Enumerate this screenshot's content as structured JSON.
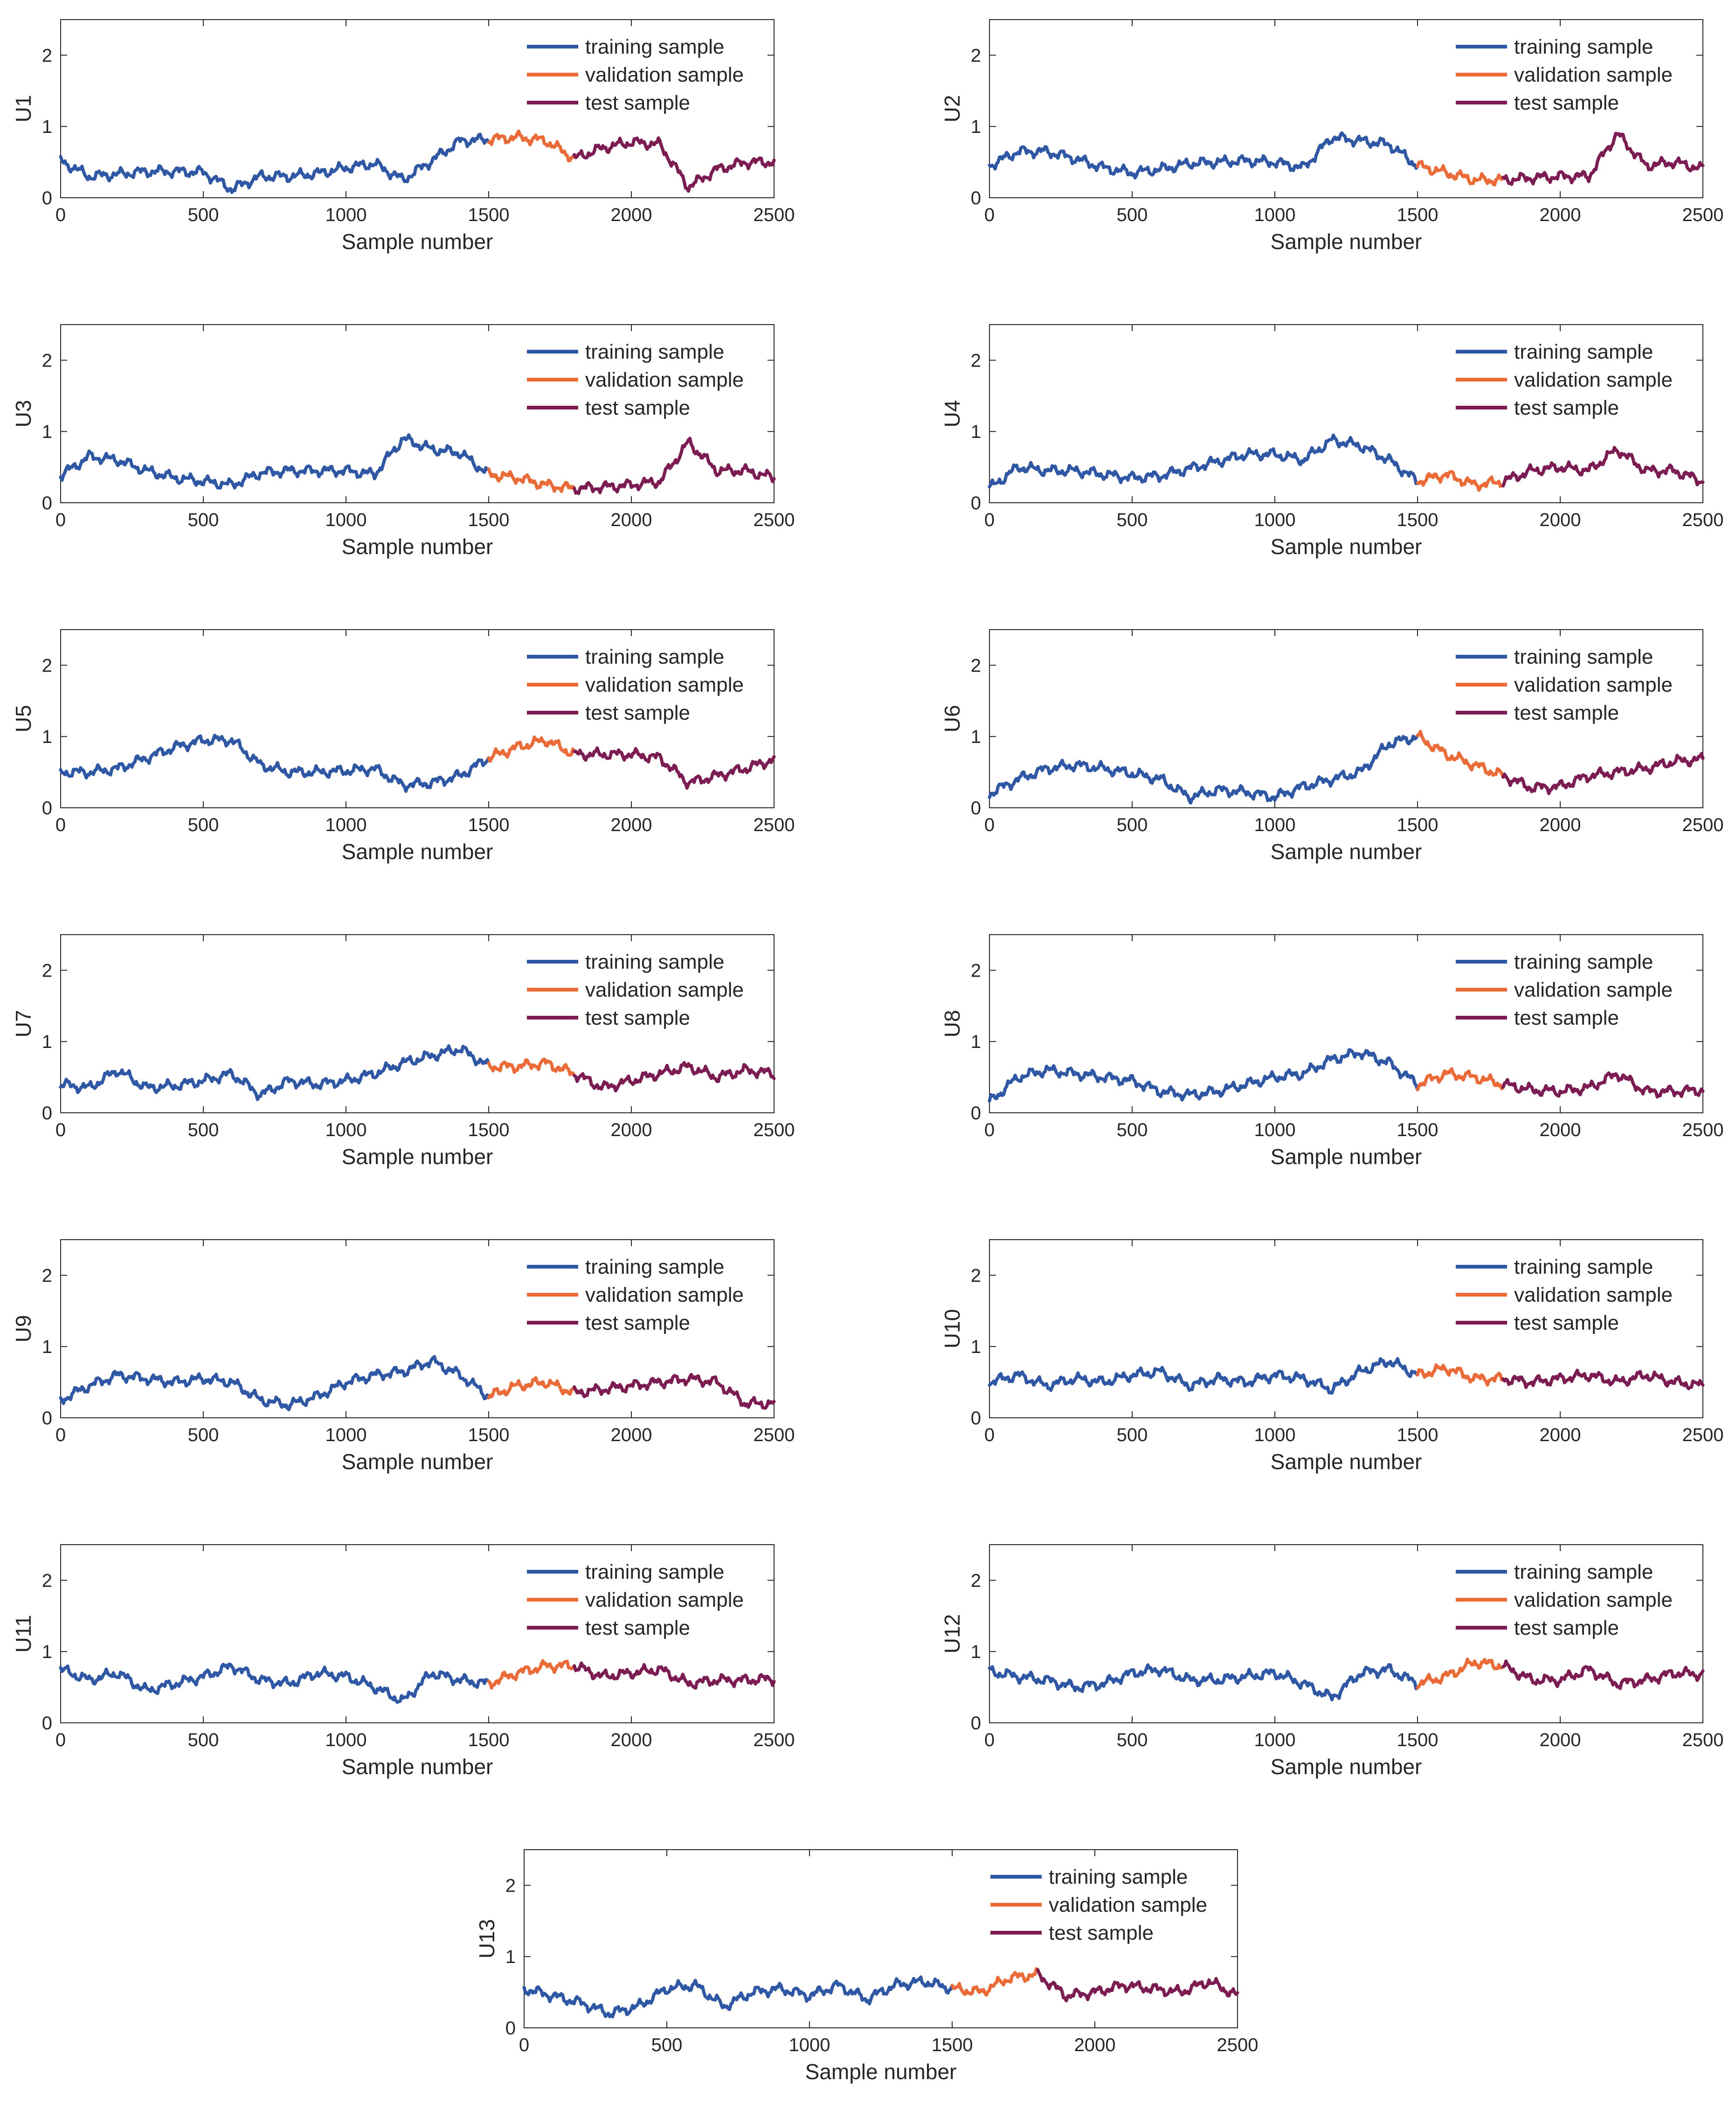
{
  "colors": {
    "train": "#2E57A6",
    "val": "#EC6A35",
    "test": "#7D1C53",
    "axis": "#262626"
  },
  "chart_data": [
    {
      "type": "line",
      "ylabel": "U1",
      "xlabel": "Sample number",
      "xlim": [
        0,
        2500
      ],
      "ylim": [
        0,
        2.5
      ],
      "xticks": [
        0,
        500,
        1000,
        1500,
        2000,
        2500
      ],
      "yticks": [
        0,
        1,
        2
      ],
      "legend": [
        "training sample",
        "validation sample",
        "test sample"
      ],
      "legend_position": "top-right",
      "splits": {
        "train": [
          0,
          1500
        ],
        "validation": [
          1500,
          1800
        ],
        "test": [
          1800,
          2500
        ]
      },
      "x": [
        0,
        100,
        200,
        300,
        400,
        500,
        600,
        700,
        800,
        900,
        1000,
        1100,
        1200,
        1300,
        1400,
        1500,
        1600,
        1700,
        1800,
        1900,
        2000,
        2100,
        2200,
        2300,
        2400,
        2500
      ],
      "values": [
        0.52,
        0.3,
        0.33,
        0.37,
        0.37,
        0.36,
        0.12,
        0.3,
        0.3,
        0.34,
        0.42,
        0.48,
        0.25,
        0.52,
        0.8,
        0.82,
        0.85,
        0.8,
        0.55,
        0.7,
        0.78,
        0.75,
        0.15,
        0.4,
        0.5,
        0.5
      ]
    },
    {
      "type": "line",
      "ylabel": "U2",
      "xlabel": "Sample number",
      "xlim": [
        0,
        2500
      ],
      "ylim": [
        0,
        2.5
      ],
      "xticks": [
        0,
        500,
        1000,
        1500,
        2000,
        2500
      ],
      "yticks": [
        0,
        1,
        2
      ],
      "legend": [
        "training sample",
        "validation sample",
        "test sample"
      ],
      "legend_position": "top-right",
      "splits": {
        "train": [
          0,
          1500
        ],
        "validation": [
          1500,
          1800
        ],
        "test": [
          1800,
          2500
        ]
      },
      "x": [
        0,
        100,
        200,
        300,
        400,
        500,
        600,
        700,
        800,
        900,
        1000,
        1100,
        1200,
        1300,
        1400,
        1500,
        1600,
        1700,
        1800,
        1900,
        2000,
        2100,
        2200,
        2300,
        2400,
        2500
      ],
      "values": [
        0.45,
        0.65,
        0.65,
        0.55,
        0.42,
        0.35,
        0.4,
        0.48,
        0.5,
        0.52,
        0.5,
        0.42,
        0.85,
        0.8,
        0.75,
        0.45,
        0.35,
        0.25,
        0.25,
        0.28,
        0.3,
        0.3,
        0.9,
        0.45,
        0.5,
        0.4
      ]
    },
    {
      "type": "line",
      "ylabel": "U3",
      "xlabel": "Sample number",
      "xlim": [
        0,
        2500
      ],
      "ylim": [
        0,
        2.5
      ],
      "xticks": [
        0,
        500,
        1000,
        1500,
        2000,
        2500
      ],
      "yticks": [
        0,
        1,
        2
      ],
      "legend": [
        "training sample",
        "validation sample",
        "test sample"
      ],
      "legend_position": "top-right",
      "splits": {
        "train": [
          0,
          1500
        ],
        "validation": [
          1500,
          1800
        ],
        "test": [
          1800,
          2500
        ]
      },
      "x": [
        0,
        100,
        200,
        300,
        400,
        500,
        600,
        700,
        800,
        900,
        1000,
        1100,
        1200,
        1300,
        1400,
        1500,
        1600,
        1700,
        1800,
        1900,
        2000,
        2100,
        2200,
        2300,
        2400,
        2500
      ],
      "values": [
        0.38,
        0.65,
        0.6,
        0.45,
        0.35,
        0.3,
        0.25,
        0.42,
        0.45,
        0.45,
        0.45,
        0.4,
        0.9,
        0.75,
        0.7,
        0.4,
        0.35,
        0.25,
        0.2,
        0.22,
        0.25,
        0.3,
        0.85,
        0.45,
        0.45,
        0.35
      ]
    },
    {
      "type": "line",
      "ylabel": "U4",
      "xlabel": "Sample number",
      "xlim": [
        0,
        2500
      ],
      "ylim": [
        0,
        2.5
      ],
      "xticks": [
        0,
        500,
        1000,
        1500,
        2000,
        2500
      ],
      "yticks": [
        0,
        1,
        2
      ],
      "legend": [
        "training sample",
        "validation sample",
        "test sample"
      ],
      "legend_position": "top-right",
      "splits": {
        "train": [
          0,
          1500
        ],
        "validation": [
          1500,
          1800
        ],
        "test": [
          1800,
          2500
        ]
      },
      "x": [
        0,
        100,
        200,
        300,
        400,
        500,
        600,
        700,
        800,
        900,
        1000,
        1100,
        1200,
        1300,
        1400,
        1500,
        1600,
        1700,
        1800,
        1900,
        2000,
        2100,
        2200,
        2300,
        2400,
        2500
      ],
      "values": [
        0.2,
        0.5,
        0.45,
        0.45,
        0.4,
        0.35,
        0.38,
        0.48,
        0.58,
        0.68,
        0.68,
        0.6,
        0.88,
        0.8,
        0.6,
        0.3,
        0.4,
        0.25,
        0.3,
        0.45,
        0.5,
        0.45,
        0.75,
        0.45,
        0.45,
        0.3
      ]
    },
    {
      "type": "line",
      "ylabel": "U5",
      "xlabel": "Sample number",
      "xlim": [
        0,
        2500
      ],
      "ylim": [
        0,
        2.5
      ],
      "xticks": [
        0,
        500,
        1000,
        1500,
        2000,
        2500
      ],
      "yticks": [
        0,
        1,
        2
      ],
      "legend": [
        "training sample",
        "validation sample",
        "test sample"
      ],
      "legend_position": "top-right",
      "splits": {
        "train": [
          0,
          1500
        ],
        "validation": [
          1500,
          1800
        ],
        "test": [
          1800,
          2500
        ]
      },
      "x": [
        0,
        100,
        200,
        300,
        400,
        500,
        600,
        700,
        800,
        900,
        1000,
        1100,
        1200,
        1300,
        1400,
        1500,
        1600,
        1700,
        1800,
        1900,
        2000,
        2100,
        2200,
        2300,
        2400,
        2500
      ],
      "values": [
        0.5,
        0.5,
        0.55,
        0.7,
        0.85,
        0.95,
        0.95,
        0.6,
        0.5,
        0.5,
        0.52,
        0.55,
        0.32,
        0.35,
        0.45,
        0.7,
        0.85,
        0.95,
        0.75,
        0.75,
        0.75,
        0.7,
        0.35,
        0.45,
        0.55,
        0.68
      ]
    },
    {
      "type": "line",
      "ylabel": "U6",
      "xlabel": "Sample number",
      "xlim": [
        0,
        2500
      ],
      "ylim": [
        0,
        2.5
      ],
      "xticks": [
        0,
        500,
        1000,
        1500,
        2000,
        2500
      ],
      "yticks": [
        0,
        1,
        2
      ],
      "legend": [
        "training sample",
        "validation sample",
        "test sample"
      ],
      "legend_position": "top-right",
      "splits": {
        "train": [
          0,
          1500
        ],
        "validation": [
          1500,
          1800
        ],
        "test": [
          1800,
          2500
        ]
      },
      "x": [
        0,
        100,
        200,
        300,
        400,
        500,
        600,
        700,
        800,
        900,
        1000,
        1100,
        1200,
        1300,
        1400,
        1500,
        1600,
        1700,
        1800,
        1900,
        2000,
        2100,
        2200,
        2300,
        2400,
        2500
      ],
      "values": [
        0.2,
        0.4,
        0.55,
        0.6,
        0.55,
        0.48,
        0.4,
        0.15,
        0.25,
        0.22,
        0.15,
        0.3,
        0.4,
        0.5,
        0.9,
        1.0,
        0.75,
        0.6,
        0.45,
        0.28,
        0.3,
        0.45,
        0.5,
        0.55,
        0.65,
        0.68
      ]
    },
    {
      "type": "line",
      "ylabel": "U7",
      "xlabel": "Sample number",
      "xlim": [
        0,
        2500
      ],
      "ylim": [
        0,
        2.5
      ],
      "xticks": [
        0,
        500,
        1000,
        1500,
        2000,
        2500
      ],
      "yticks": [
        0,
        1,
        2
      ],
      "legend": [
        "training sample",
        "validation sample",
        "test sample"
      ],
      "legend_position": "top-right",
      "splits": {
        "train": [
          0,
          1500
        ],
        "validation": [
          1500,
          1800
        ],
        "test": [
          1800,
          2500
        ]
      },
      "x": [
        0,
        100,
        200,
        300,
        400,
        500,
        600,
        700,
        800,
        900,
        1000,
        1100,
        1200,
        1300,
        1400,
        1500,
        1600,
        1700,
        1800,
        1900,
        2000,
        2100,
        2200,
        2300,
        2400,
        2500
      ],
      "values": [
        0.4,
        0.35,
        0.6,
        0.35,
        0.38,
        0.45,
        0.55,
        0.25,
        0.45,
        0.4,
        0.45,
        0.55,
        0.7,
        0.8,
        0.9,
        0.65,
        0.65,
        0.7,
        0.55,
        0.35,
        0.45,
        0.55,
        0.65,
        0.5,
        0.6,
        0.55
      ]
    },
    {
      "type": "line",
      "ylabel": "U8",
      "xlabel": "Sample number",
      "xlim": [
        0,
        2500
      ],
      "ylim": [
        0,
        2.5
      ],
      "xticks": [
        0,
        500,
        1000,
        1500,
        2000,
        2500
      ],
      "yticks": [
        0,
        1,
        2
      ],
      "legend": [
        "training sample",
        "validation sample",
        "test sample"
      ],
      "legend_position": "top-right",
      "splits": {
        "train": [
          0,
          1500
        ],
        "validation": [
          1500,
          1800
        ],
        "test": [
          1800,
          2500
        ]
      },
      "x": [
        0,
        100,
        200,
        300,
        400,
        500,
        600,
        700,
        800,
        900,
        1000,
        1100,
        1200,
        1300,
        1400,
        1500,
        1600,
        1700,
        1800,
        1900,
        2000,
        2100,
        2200,
        2300,
        2400,
        2500
      ],
      "values": [
        0.15,
        0.5,
        0.6,
        0.55,
        0.5,
        0.45,
        0.3,
        0.25,
        0.3,
        0.4,
        0.5,
        0.55,
        0.75,
        0.85,
        0.7,
        0.4,
        0.55,
        0.5,
        0.4,
        0.32,
        0.3,
        0.35,
        0.55,
        0.3,
        0.3,
        0.32
      ]
    },
    {
      "type": "line",
      "ylabel": "U9",
      "xlabel": "Sample number",
      "xlim": [
        0,
        2500
      ],
      "ylim": [
        0,
        2.5
      ],
      "xticks": [
        0,
        500,
        1000,
        1500,
        2000,
        2500
      ],
      "yticks": [
        0,
        1,
        2
      ],
      "legend": [
        "training sample",
        "validation sample",
        "test sample"
      ],
      "legend_position": "top-right",
      "splits": {
        "train": [
          0,
          1500
        ],
        "validation": [
          1500,
          1800
        ],
        "test": [
          1800,
          2500
        ]
      },
      "x": [
        0,
        100,
        200,
        300,
        400,
        500,
        600,
        700,
        800,
        900,
        1000,
        1100,
        1200,
        1300,
        1400,
        1500,
        1600,
        1700,
        1800,
        1900,
        2000,
        2100,
        2200,
        2300,
        2400,
        2500
      ],
      "values": [
        0.25,
        0.45,
        0.6,
        0.55,
        0.5,
        0.55,
        0.5,
        0.25,
        0.18,
        0.3,
        0.5,
        0.6,
        0.65,
        0.8,
        0.6,
        0.3,
        0.45,
        0.5,
        0.35,
        0.4,
        0.45,
        0.5,
        0.55,
        0.5,
        0.2,
        0.2
      ]
    },
    {
      "type": "line",
      "ylabel": "U10",
      "xlabel": "Sample number",
      "xlim": [
        0,
        2500
      ],
      "ylim": [
        0,
        2.5
      ],
      "xticks": [
        0,
        500,
        1000,
        1500,
        2000,
        2500
      ],
      "yticks": [
        0,
        1,
        2
      ],
      "legend": [
        "training sample",
        "validation sample",
        "test sample"
      ],
      "legend_position": "top-right",
      "splits": {
        "train": [
          0,
          1500
        ],
        "validation": [
          1500,
          1800
        ],
        "test": [
          1800,
          2500
        ]
      },
      "x": [
        0,
        100,
        200,
        300,
        400,
        500,
        600,
        700,
        800,
        900,
        1000,
        1100,
        1200,
        1300,
        1400,
        1500,
        1600,
        1700,
        1800,
        1900,
        2000,
        2100,
        2200,
        2300,
        2400,
        2500
      ],
      "values": [
        0.5,
        0.6,
        0.45,
        0.55,
        0.5,
        0.6,
        0.65,
        0.45,
        0.55,
        0.5,
        0.6,
        0.55,
        0.4,
        0.65,
        0.8,
        0.6,
        0.7,
        0.55,
        0.55,
        0.5,
        0.55,
        0.6,
        0.5,
        0.6,
        0.5,
        0.45
      ]
    },
    {
      "type": "line",
      "ylabel": "U11",
      "xlabel": "Sample number",
      "xlim": [
        0,
        2500
      ],
      "ylim": [
        0,
        2.5
      ],
      "xticks": [
        0,
        500,
        1000,
        1500,
        2000,
        2500
      ],
      "yticks": [
        0,
        1,
        2
      ],
      "legend": [
        "training sample",
        "validation sample",
        "test sample"
      ],
      "legend_position": "top-right",
      "splits": {
        "train": [
          0,
          1500
        ],
        "validation": [
          1500,
          1800
        ],
        "test": [
          1800,
          2500
        ]
      },
      "x": [
        0,
        100,
        200,
        300,
        400,
        500,
        600,
        700,
        800,
        900,
        1000,
        1100,
        1200,
        1300,
        1400,
        1500,
        1600,
        1700,
        1800,
        1900,
        2000,
        2100,
        2200,
        2300,
        2400,
        2500
      ],
      "values": [
        0.75,
        0.6,
        0.7,
        0.45,
        0.55,
        0.65,
        0.8,
        0.6,
        0.55,
        0.7,
        0.65,
        0.5,
        0.3,
        0.7,
        0.6,
        0.55,
        0.7,
        0.8,
        0.8,
        0.65,
        0.7,
        0.75,
        0.55,
        0.6,
        0.6,
        0.62
      ]
    },
    {
      "type": "line",
      "ylabel": "U12",
      "xlabel": "Sample number",
      "xlim": [
        0,
        2500
      ],
      "ylim": [
        0,
        2.5
      ],
      "xticks": [
        0,
        500,
        1000,
        1500,
        2000,
        2500
      ],
      "yticks": [
        0,
        1,
        2
      ],
      "legend": [
        "training sample",
        "validation sample",
        "test sample"
      ],
      "legend_position": "top-right",
      "splits": {
        "train": [
          0,
          1500
        ],
        "validation": [
          1500,
          1800
        ],
        "test": [
          1800,
          2500
        ]
      },
      "x": [
        0,
        100,
        200,
        300,
        400,
        500,
        600,
        700,
        800,
        900,
        1000,
        1100,
        1200,
        1300,
        1400,
        1500,
        1600,
        1700,
        1800,
        1900,
        2000,
        2100,
        2200,
        2300,
        2400,
        2500
      ],
      "values": [
        0.72,
        0.65,
        0.6,
        0.5,
        0.55,
        0.7,
        0.75,
        0.6,
        0.6,
        0.65,
        0.7,
        0.55,
        0.35,
        0.7,
        0.75,
        0.55,
        0.65,
        0.85,
        0.8,
        0.6,
        0.6,
        0.75,
        0.55,
        0.6,
        0.7,
        0.68
      ]
    },
    {
      "type": "line",
      "ylabel": "U13",
      "xlabel": "Sample number",
      "xlim": [
        0,
        2500
      ],
      "ylim": [
        0,
        2.5
      ],
      "xticks": [
        0,
        500,
        1000,
        1500,
        2000,
        2500
      ],
      "yticks": [
        0,
        1,
        2
      ],
      "legend": [
        "training sample",
        "validation sample",
        "test sample"
      ],
      "legend_position": "top-right",
      "splits": {
        "train": [
          0,
          1500
        ],
        "validation": [
          1500,
          1800
        ],
        "test": [
          1800,
          2500
        ]
      },
      "x": [
        0,
        100,
        200,
        300,
        400,
        500,
        600,
        700,
        800,
        900,
        1000,
        1100,
        1200,
        1300,
        1400,
        1500,
        1600,
        1700,
        1800,
        1900,
        2000,
        2100,
        2200,
        2300,
        2400,
        2500
      ],
      "values": [
        0.55,
        0.45,
        0.35,
        0.2,
        0.3,
        0.55,
        0.6,
        0.3,
        0.5,
        0.55,
        0.45,
        0.6,
        0.4,
        0.6,
        0.65,
        0.55,
        0.5,
        0.7,
        0.75,
        0.45,
        0.5,
        0.6,
        0.55,
        0.5,
        0.65,
        0.45
      ]
    }
  ]
}
